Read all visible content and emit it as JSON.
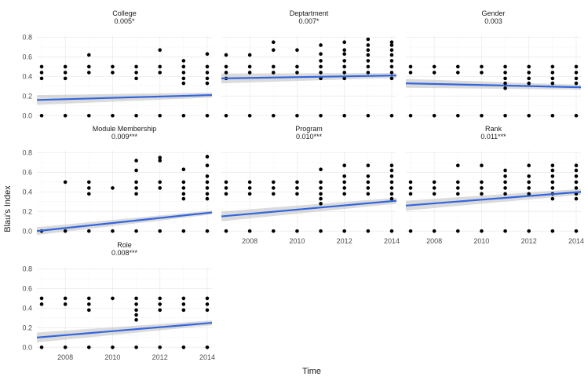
{
  "chart_data": {
    "type": "scatter",
    "xlabel": "Time",
    "ylabel": "Blau's Index",
    "xlim": [
      2006.8,
      2014.2
    ],
    "ylim": [
      -0.03,
      0.82
    ],
    "x_ticks": [
      2008,
      2010,
      2012,
      2014
    ],
    "y_ticks": [
      0.0,
      0.2,
      0.4,
      0.6,
      0.8
    ],
    "x_tick_labels": [
      "2008",
      "2010",
      "2012",
      "2014"
    ],
    "y_tick_labels": [
      "0.0",
      "0.2",
      "0.4",
      "0.6",
      "0.8"
    ],
    "colors": {
      "fit_line": "#3366dd",
      "ribbon": "#bdbdbd",
      "point": "#000000",
      "grid": "#ebebeb"
    },
    "panels": [
      {
        "name": "College",
        "stat": "0.005*",
        "fit": {
          "y_start": 0.16,
          "y_end": 0.21,
          "se_start": 0.05,
          "se_end": 0.025
        },
        "points": [
          [
            2007,
            0
          ],
          [
            2007,
            0.38
          ],
          [
            2007,
            0.44
          ],
          [
            2007,
            0.5
          ],
          [
            2008,
            0
          ],
          [
            2008,
            0.38
          ],
          [
            2008,
            0.44
          ],
          [
            2008,
            0.5
          ],
          [
            2009,
            0
          ],
          [
            2009,
            0.44
          ],
          [
            2009,
            0.5
          ],
          [
            2009,
            0.62
          ],
          [
            2010,
            0
          ],
          [
            2010,
            0.44
          ],
          [
            2010,
            0.5
          ],
          [
            2011,
            0
          ],
          [
            2011,
            0.38
          ],
          [
            2011,
            0.44
          ],
          [
            2011,
            0.5
          ],
          [
            2012,
            0
          ],
          [
            2012,
            0.44
          ],
          [
            2012,
            0.5
          ],
          [
            2012,
            0.67
          ],
          [
            2013,
            0
          ],
          [
            2013,
            0.33
          ],
          [
            2013,
            0.38
          ],
          [
            2013,
            0.44
          ],
          [
            2013,
            0.5
          ],
          [
            2013,
            0.56
          ],
          [
            2014,
            0
          ],
          [
            2014,
            0.33
          ],
          [
            2014,
            0.38
          ],
          [
            2014,
            0.44
          ],
          [
            2014,
            0.5
          ],
          [
            2014,
            0.63
          ]
        ]
      },
      {
        "name": "Deptartment",
        "stat": "0.007*",
        "fit": {
          "y_start": 0.38,
          "y_end": 0.41,
          "se_start": 0.05,
          "se_end": 0.025
        },
        "points": [
          [
            2007,
            0
          ],
          [
            2007,
            0.38
          ],
          [
            2007,
            0.44
          ],
          [
            2007,
            0.5
          ],
          [
            2007,
            0.62
          ],
          [
            2008,
            0
          ],
          [
            2008,
            0.44
          ],
          [
            2008,
            0.5
          ],
          [
            2008,
            0.62
          ],
          [
            2009,
            0
          ],
          [
            2009,
            0.44
          ],
          [
            2009,
            0.5
          ],
          [
            2009,
            0.67
          ],
          [
            2009,
            0.75
          ],
          [
            2010,
            0
          ],
          [
            2010,
            0.44
          ],
          [
            2010,
            0.5
          ],
          [
            2010,
            0.67
          ],
          [
            2011,
            0
          ],
          [
            2011,
            0.38
          ],
          [
            2011,
            0.44
          ],
          [
            2011,
            0.5
          ],
          [
            2011,
            0.56
          ],
          [
            2011,
            0.63
          ],
          [
            2011,
            0.72
          ],
          [
            2012,
            0
          ],
          [
            2012,
            0.38
          ],
          [
            2012,
            0.44
          ],
          [
            2012,
            0.5
          ],
          [
            2012,
            0.56
          ],
          [
            2012,
            0.63
          ],
          [
            2012,
            0.67
          ],
          [
            2012,
            0.75
          ],
          [
            2013,
            0
          ],
          [
            2013,
            0.44
          ],
          [
            2013,
            0.5
          ],
          [
            2013,
            0.56
          ],
          [
            2013,
            0.62
          ],
          [
            2013,
            0.67
          ],
          [
            2013,
            0.72
          ],
          [
            2013,
            0.78
          ],
          [
            2014,
            0
          ],
          [
            2014,
            0.38
          ],
          [
            2014,
            0.44
          ],
          [
            2014,
            0.5
          ],
          [
            2014,
            0.56
          ],
          [
            2014,
            0.62
          ],
          [
            2014,
            0.67
          ],
          [
            2014,
            0.72
          ],
          [
            2014,
            0.75
          ]
        ]
      },
      {
        "name": "Gender",
        "stat": "0.003",
        "fit": {
          "y_start": 0.33,
          "y_end": 0.29,
          "se_start": 0.045,
          "se_end": 0.025
        },
        "points": [
          [
            2007,
            0
          ],
          [
            2007,
            0.44
          ],
          [
            2007,
            0.5
          ],
          [
            2008,
            0
          ],
          [
            2008,
            0.44
          ],
          [
            2008,
            0.5
          ],
          [
            2009,
            0
          ],
          [
            2009,
            0.44
          ],
          [
            2009,
            0.5
          ],
          [
            2010,
            0
          ],
          [
            2010,
            0.44
          ],
          [
            2010,
            0.5
          ],
          [
            2011,
            0
          ],
          [
            2011,
            0.28
          ],
          [
            2011,
            0.33
          ],
          [
            2011,
            0.38
          ],
          [
            2011,
            0.44
          ],
          [
            2011,
            0.5
          ],
          [
            2012,
            0
          ],
          [
            2012,
            0.33
          ],
          [
            2012,
            0.38
          ],
          [
            2012,
            0.44
          ],
          [
            2012,
            0.5
          ],
          [
            2013,
            0
          ],
          [
            2013,
            0.33
          ],
          [
            2013,
            0.38
          ],
          [
            2013,
            0.44
          ],
          [
            2013,
            0.5
          ],
          [
            2014,
            0
          ],
          [
            2014,
            0.33
          ],
          [
            2014,
            0.38
          ],
          [
            2014,
            0.44
          ],
          [
            2014,
            0.5
          ]
        ]
      },
      {
        "name": "Module Membership",
        "stat": "0.009***",
        "fit": {
          "y_start": 0.0,
          "y_end": 0.19,
          "se_start": 0.04,
          "se_end": 0.02
        },
        "points": [
          [
            2007,
            0
          ],
          [
            2008,
            0
          ],
          [
            2008,
            0.5
          ],
          [
            2009,
            0
          ],
          [
            2009,
            0.38
          ],
          [
            2009,
            0.44
          ],
          [
            2009,
            0.5
          ],
          [
            2010,
            0
          ],
          [
            2010,
            0.44
          ],
          [
            2011,
            0
          ],
          [
            2011,
            0.38
          ],
          [
            2011,
            0.44
          ],
          [
            2011,
            0.5
          ],
          [
            2011,
            0.62
          ],
          [
            2011,
            0.72
          ],
          [
            2012,
            0
          ],
          [
            2012,
            0.44
          ],
          [
            2012,
            0.5
          ],
          [
            2012,
            0.72
          ],
          [
            2012,
            0.75
          ],
          [
            2013,
            0
          ],
          [
            2013,
            0.33
          ],
          [
            2013,
            0.38
          ],
          [
            2013,
            0.44
          ],
          [
            2013,
            0.5
          ],
          [
            2013,
            0.63
          ],
          [
            2014,
            0
          ],
          [
            2014,
            0.33
          ],
          [
            2014,
            0.38
          ],
          [
            2014,
            0.44
          ],
          [
            2014,
            0.5
          ],
          [
            2014,
            0.56
          ],
          [
            2014,
            0.67
          ],
          [
            2014,
            0.76
          ]
        ]
      },
      {
        "name": "Program",
        "stat": "0.010***",
        "fit": {
          "y_start": 0.15,
          "y_end": 0.31,
          "se_start": 0.05,
          "se_end": 0.03
        },
        "points": [
          [
            2007,
            0
          ],
          [
            2007,
            0.38
          ],
          [
            2007,
            0.44
          ],
          [
            2007,
            0.5
          ],
          [
            2008,
            0
          ],
          [
            2008,
            0.38
          ],
          [
            2008,
            0.44
          ],
          [
            2008,
            0.5
          ],
          [
            2009,
            0
          ],
          [
            2009,
            0.38
          ],
          [
            2009,
            0.44
          ],
          [
            2009,
            0.5
          ],
          [
            2010,
            0
          ],
          [
            2010,
            0.38
          ],
          [
            2010,
            0.44
          ],
          [
            2010,
            0.5
          ],
          [
            2011,
            0
          ],
          [
            2011,
            0.28
          ],
          [
            2011,
            0.33
          ],
          [
            2011,
            0.38
          ],
          [
            2011,
            0.44
          ],
          [
            2011,
            0.5
          ],
          [
            2011,
            0.63
          ],
          [
            2012,
            0
          ],
          [
            2012,
            0.38
          ],
          [
            2012,
            0.44
          ],
          [
            2012,
            0.5
          ],
          [
            2012,
            0.56
          ],
          [
            2012,
            0.67
          ],
          [
            2013,
            0
          ],
          [
            2013,
            0.38
          ],
          [
            2013,
            0.44
          ],
          [
            2013,
            0.5
          ],
          [
            2013,
            0.56
          ],
          [
            2013,
            0.67
          ],
          [
            2014,
            0
          ],
          [
            2014,
            0.33
          ],
          [
            2014,
            0.38
          ],
          [
            2014,
            0.44
          ],
          [
            2014,
            0.5
          ],
          [
            2014,
            0.56
          ],
          [
            2014,
            0.62
          ],
          [
            2014,
            0.67
          ]
        ]
      },
      {
        "name": "Rank",
        "stat": "0.011***",
        "fit": {
          "y_start": 0.26,
          "y_end": 0.4,
          "se_start": 0.05,
          "se_end": 0.03
        },
        "points": [
          [
            2007,
            0
          ],
          [
            2007,
            0.38
          ],
          [
            2007,
            0.44
          ],
          [
            2007,
            0.5
          ],
          [
            2008,
            0
          ],
          [
            2008,
            0.38
          ],
          [
            2008,
            0.44
          ],
          [
            2008,
            0.5
          ],
          [
            2009,
            0
          ],
          [
            2009,
            0.38
          ],
          [
            2009,
            0.44
          ],
          [
            2009,
            0.5
          ],
          [
            2009,
            0.67
          ],
          [
            2010,
            0
          ],
          [
            2010,
            0.38
          ],
          [
            2010,
            0.44
          ],
          [
            2010,
            0.5
          ],
          [
            2010,
            0.67
          ],
          [
            2011,
            0
          ],
          [
            2011,
            0.38
          ],
          [
            2011,
            0.44
          ],
          [
            2011,
            0.5
          ],
          [
            2011,
            0.56
          ],
          [
            2011,
            0.62
          ],
          [
            2012,
            0
          ],
          [
            2012,
            0.38
          ],
          [
            2012,
            0.44
          ],
          [
            2012,
            0.5
          ],
          [
            2012,
            0.56
          ],
          [
            2012,
            0.67
          ],
          [
            2013,
            0
          ],
          [
            2013,
            0.33
          ],
          [
            2013,
            0.38
          ],
          [
            2013,
            0.44
          ],
          [
            2013,
            0.5
          ],
          [
            2013,
            0.56
          ],
          [
            2013,
            0.62
          ],
          [
            2013,
            0.67
          ],
          [
            2014,
            0
          ],
          [
            2014,
            0.33
          ],
          [
            2014,
            0.38
          ],
          [
            2014,
            0.44
          ],
          [
            2014,
            0.5
          ],
          [
            2014,
            0.56
          ],
          [
            2014,
            0.62
          ],
          [
            2014,
            0.67
          ]
        ]
      },
      {
        "name": "Role",
        "stat": "0.008***",
        "fit": {
          "y_start": 0.1,
          "y_end": 0.25,
          "se_start": 0.05,
          "se_end": 0.025
        },
        "points": [
          [
            2007,
            0
          ],
          [
            2007,
            0.44
          ],
          [
            2007,
            0.5
          ],
          [
            2008,
            0
          ],
          [
            2008,
            0.44
          ],
          [
            2008,
            0.5
          ],
          [
            2009,
            0
          ],
          [
            2009,
            0.38
          ],
          [
            2009,
            0.44
          ],
          [
            2009,
            0.5
          ],
          [
            2010,
            0
          ],
          [
            2010,
            0.5
          ],
          [
            2011,
            0
          ],
          [
            2011,
            0.28
          ],
          [
            2011,
            0.33
          ],
          [
            2011,
            0.38
          ],
          [
            2011,
            0.44
          ],
          [
            2011,
            0.5
          ],
          [
            2012,
            0
          ],
          [
            2012,
            0.38
          ],
          [
            2012,
            0.44
          ],
          [
            2012,
            0.5
          ],
          [
            2013,
            0
          ],
          [
            2013,
            0.38
          ],
          [
            2013,
            0.44
          ],
          [
            2013,
            0.5
          ],
          [
            2014,
            0
          ],
          [
            2014,
            0.38
          ],
          [
            2014,
            0.44
          ],
          [
            2014,
            0.5
          ]
        ]
      }
    ]
  }
}
